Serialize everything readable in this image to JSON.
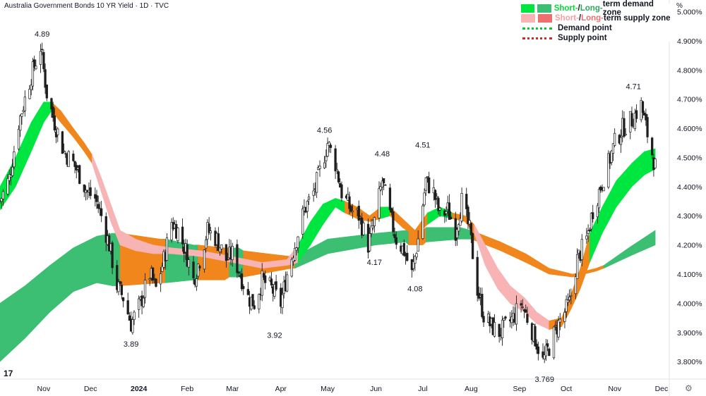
{
  "title": "Australia Government Bonds 10 YR Yield · 1D · TVC",
  "unit_label": "%",
  "legend": {
    "demand_short": "Short-",
    "demand_sep": " / ",
    "demand_long": "Long-",
    "demand_rest": "term demand zone",
    "supply_short": "Short-",
    "supply_sep": " / ",
    "supply_long": "Long-",
    "supply_rest": "term supply zone",
    "demand_point": "Demand point",
    "supply_point": "Supply point"
  },
  "colors": {
    "short_demand": "#00e640",
    "long_demand": "#3cbf72",
    "short_supply": "#f8b4b4",
    "long_supply": "#f0861c",
    "demand_point": "#00cc33",
    "supply_point": "#dd2222",
    "candle": "#1e1e1e"
  },
  "chart_data": {
    "type": "candlestick",
    "y_unit": "%",
    "ylim": [
      3.74,
      5.04
    ],
    "y_ticks": [
      "5.000%",
      "4.900%",
      "4.800%",
      "4.700%",
      "4.600%",
      "4.500%",
      "4.400%",
      "4.300%",
      "4.200%",
      "4.100%",
      "4.000%",
      "3.900%",
      "3.800%"
    ],
    "y_tick_values": [
      5.0,
      4.9,
      4.8,
      4.7,
      4.6,
      4.5,
      4.4,
      4.3,
      4.2,
      4.1,
      4.0,
      3.9,
      3.8
    ],
    "x_ticks": [
      "Nov",
      "Dec",
      "2024",
      "Feb",
      "Mar",
      "Apr",
      "May",
      "Jun",
      "Jul",
      "Aug",
      "Sep",
      "Oct",
      "Nov",
      "Dec"
    ],
    "x_tick_dates": [
      "2023-11-01",
      "2023-12-01",
      "2024-01-01",
      "2024-02-01",
      "2024-03-01",
      "2024-04-01",
      "2024-05-01",
      "2024-06-01",
      "2024-07-01",
      "2024-08-01",
      "2024-09-01",
      "2024-10-01",
      "2024-11-01",
      "2024-12-01"
    ],
    "x_range": [
      "2023-10-04",
      "2024-12-06"
    ],
    "last_close": 4.47,
    "close_path": [
      [
        "2023-10-04",
        4.35
      ],
      [
        "2023-10-10",
        4.43
      ],
      [
        "2023-10-16",
        4.62
      ],
      [
        "2023-10-20",
        4.7
      ],
      [
        "2023-10-24",
        4.78
      ],
      [
        "2023-10-30",
        4.88
      ],
      [
        "2023-11-03",
        4.72
      ],
      [
        "2023-11-08",
        4.62
      ],
      [
        "2023-11-14",
        4.52
      ],
      [
        "2023-11-20",
        4.48
      ],
      [
        "2023-11-24",
        4.44
      ],
      [
        "2023-11-29",
        4.38
      ],
      [
        "2023-12-04",
        4.36
      ],
      [
        "2023-12-08",
        4.3
      ],
      [
        "2023-12-13",
        4.2
      ],
      [
        "2023-12-18",
        4.06
      ],
      [
        "2023-12-22",
        4.02
      ],
      [
        "2023-12-27",
        3.93
      ],
      [
        "2024-01-02",
        4.0
      ],
      [
        "2024-01-08",
        4.1
      ],
      [
        "2024-01-12",
        4.05
      ],
      [
        "2024-01-17",
        4.15
      ],
      [
        "2024-01-22",
        4.28
      ],
      [
        "2024-01-26",
        4.25
      ],
      [
        "2024-01-31",
        4.18
      ],
      [
        "2024-02-05",
        4.08
      ],
      [
        "2024-02-09",
        4.15
      ],
      [
        "2024-02-14",
        4.25
      ],
      [
        "2024-02-20",
        4.22
      ],
      [
        "2024-02-26",
        4.15
      ],
      [
        "2024-03-01",
        4.17
      ],
      [
        "2024-03-06",
        4.1
      ],
      [
        "2024-03-11",
        4.02
      ],
      [
        "2024-03-15",
        4.0
      ],
      [
        "2024-03-20",
        4.08
      ],
      [
        "2024-03-26",
        4.05
      ],
      [
        "2024-04-01",
        4.0
      ],
      [
        "2024-04-05",
        4.1
      ],
      [
        "2024-04-10",
        4.2
      ],
      [
        "2024-04-16",
        4.32
      ],
      [
        "2024-04-22",
        4.38
      ],
      [
        "2024-04-26",
        4.45
      ],
      [
        "2024-05-01",
        4.55
      ],
      [
        "2024-05-06",
        4.48
      ],
      [
        "2024-05-10",
        4.38
      ],
      [
        "2024-05-16",
        4.32
      ],
      [
        "2024-05-21",
        4.3
      ],
      [
        "2024-05-27",
        4.2
      ],
      [
        "2024-05-31",
        4.28
      ],
      [
        "2024-06-05",
        4.42
      ],
      [
        "2024-06-10",
        4.3
      ],
      [
        "2024-06-14",
        4.22
      ],
      [
        "2024-06-19",
        4.18
      ],
      [
        "2024-06-24",
        4.1
      ],
      [
        "2024-06-28",
        4.22
      ],
      [
        "2024-07-03",
        4.42
      ],
      [
        "2024-07-08",
        4.38
      ],
      [
        "2024-07-12",
        4.3
      ],
      [
        "2024-07-17",
        4.32
      ],
      [
        "2024-07-22",
        4.25
      ],
      [
        "2024-07-26",
        4.35
      ],
      [
        "2024-07-31",
        4.25
      ],
      [
        "2024-08-05",
        4.05
      ],
      [
        "2024-08-09",
        3.96
      ],
      [
        "2024-08-14",
        3.92
      ],
      [
        "2024-08-19",
        3.9
      ],
      [
        "2024-08-23",
        3.92
      ],
      [
        "2024-08-28",
        3.95
      ],
      [
        "2024-09-02",
        4.0
      ],
      [
        "2024-09-06",
        3.95
      ],
      [
        "2024-09-11",
        3.88
      ],
      [
        "2024-09-16",
        3.8
      ],
      [
        "2024-09-20",
        3.85
      ],
      [
        "2024-09-25",
        3.92
      ],
      [
        "2024-09-30",
        3.97
      ],
      [
        "2024-10-03",
        4.0
      ],
      [
        "2024-10-08",
        4.15
      ],
      [
        "2024-10-14",
        4.22
      ],
      [
        "2024-10-18",
        4.32
      ],
      [
        "2024-10-23",
        4.4
      ],
      [
        "2024-10-28",
        4.48
      ],
      [
        "2024-11-01",
        4.55
      ],
      [
        "2024-11-06",
        4.6
      ],
      [
        "2024-11-12",
        4.63
      ],
      [
        "2024-11-18",
        4.68
      ],
      [
        "2024-11-22",
        4.58
      ],
      [
        "2024-11-27",
        4.47
      ]
    ],
    "annotations": [
      {
        "date": "2023-10-31",
        "value": 4.89,
        "label": "4.89",
        "position": "above"
      },
      {
        "date": "2023-12-27",
        "value": 3.89,
        "label": "3.89",
        "position": "below"
      },
      {
        "date": "2024-03-28",
        "value": 3.92,
        "label": "3.92",
        "position": "below"
      },
      {
        "date": "2024-04-29",
        "value": 4.56,
        "label": "4.56",
        "position": "above"
      },
      {
        "date": "2024-05-31",
        "value": 4.17,
        "label": "4.17",
        "position": "below"
      },
      {
        "date": "2024-06-05",
        "value": 4.48,
        "label": "4.48",
        "position": "above"
      },
      {
        "date": "2024-06-26",
        "value": 4.08,
        "label": "4.08",
        "position": "below"
      },
      {
        "date": "2024-07-01",
        "value": 4.51,
        "label": "4.51",
        "position": "above"
      },
      {
        "date": "2024-09-17",
        "value": 3.769,
        "label": "3.769",
        "position": "below"
      },
      {
        "date": "2024-11-13",
        "value": 4.71,
        "label": "4.71",
        "position": "above"
      }
    ],
    "short_term_band": [
      [
        "2023-10-04",
        4.32,
        4.4,
        "demand"
      ],
      [
        "2023-10-14",
        4.4,
        4.5,
        "demand"
      ],
      [
        "2023-10-24",
        4.52,
        4.62,
        "demand"
      ],
      [
        "2023-11-01",
        4.62,
        4.69,
        "demand"
      ],
      [
        "2023-11-06",
        4.66,
        4.69,
        "supply_long"
      ],
      [
        "2023-11-12",
        4.62,
        4.66,
        "supply_long"
      ],
      [
        "2023-11-20",
        4.57,
        4.6,
        "supply_long"
      ],
      [
        "2023-11-27",
        4.52,
        4.55,
        "supply_long"
      ],
      [
        "2023-12-02",
        4.48,
        4.51,
        "supply_short"
      ],
      [
        "2023-12-08",
        4.38,
        4.43,
        "supply_short"
      ],
      [
        "2023-12-14",
        4.28,
        4.34,
        "supply_short"
      ],
      [
        "2023-12-20",
        4.2,
        4.25,
        "supply_short"
      ],
      [
        "2023-12-30",
        4.18,
        4.22,
        "supply_short"
      ],
      [
        "2024-01-10",
        4.17,
        4.2,
        "supply_short"
      ],
      [
        "2024-01-22",
        4.17,
        4.19,
        "none"
      ],
      [
        "2024-02-10",
        4.16,
        4.18,
        "none"
      ],
      [
        "2024-03-01",
        4.14,
        4.16,
        "none"
      ],
      [
        "2024-03-20",
        4.12,
        4.14,
        "none"
      ],
      [
        "2024-04-05",
        4.13,
        4.15,
        "none"
      ],
      [
        "2024-04-12",
        4.14,
        4.2,
        "demand"
      ],
      [
        "2024-04-20",
        4.2,
        4.28,
        "demand"
      ],
      [
        "2024-04-28",
        4.27,
        4.34,
        "demand"
      ],
      [
        "2024-05-06",
        4.33,
        4.36,
        "demand"
      ],
      [
        "2024-05-12",
        4.31,
        4.35,
        "supply_long"
      ],
      [
        "2024-05-20",
        4.29,
        4.33,
        "supply_long"
      ],
      [
        "2024-05-28",
        4.28,
        4.3,
        "supply_long"
      ],
      [
        "2024-06-04",
        4.29,
        4.33,
        "demand"
      ],
      [
        "2024-06-10",
        4.3,
        4.33,
        "supply_long"
      ],
      [
        "2024-06-18",
        4.26,
        4.29,
        "supply_long"
      ],
      [
        "2024-06-26",
        4.23,
        4.25,
        "supply_long"
      ],
      [
        "2024-07-04",
        4.27,
        4.31,
        "demand"
      ],
      [
        "2024-07-12",
        4.3,
        4.33,
        "demand"
      ],
      [
        "2024-07-20",
        4.29,
        4.31,
        "supply_long"
      ],
      [
        "2024-07-28",
        4.28,
        4.3,
        "supply_long"
      ],
      [
        "2024-08-03",
        4.24,
        4.27,
        "supply_short"
      ],
      [
        "2024-08-10",
        4.13,
        4.2,
        "supply_short"
      ],
      [
        "2024-08-18",
        4.05,
        4.12,
        "supply_short"
      ],
      [
        "2024-08-26",
        4.0,
        4.06,
        "supply_short"
      ],
      [
        "2024-09-04",
        3.97,
        4.02,
        "supply_short"
      ],
      [
        "2024-09-12",
        3.93,
        3.97,
        "supply_short"
      ],
      [
        "2024-09-20",
        3.91,
        3.94,
        "supply_long"
      ],
      [
        "2024-09-28",
        3.92,
        3.95,
        "supply_long"
      ],
      [
        "2024-10-04",
        3.98,
        4.03,
        "demand_long"
      ],
      [
        "2024-10-10",
        4.05,
        4.12,
        "demand_long"
      ],
      [
        "2024-10-16",
        4.14,
        4.24,
        "demand"
      ],
      [
        "2024-10-24",
        4.24,
        4.33,
        "demand"
      ],
      [
        "2024-11-02",
        4.33,
        4.42,
        "demand"
      ],
      [
        "2024-11-12",
        4.4,
        4.48,
        "demand"
      ],
      [
        "2024-11-20",
        4.44,
        4.52,
        "demand"
      ],
      [
        "2024-11-27",
        4.46,
        4.53,
        "demand"
      ]
    ],
    "long_term_band": [
      [
        "2023-10-04",
        3.8,
        4.0,
        "demand"
      ],
      [
        "2023-10-20",
        3.88,
        4.06,
        "demand"
      ],
      [
        "2023-11-05",
        3.97,
        4.13,
        "demand"
      ],
      [
        "2023-11-20",
        4.04,
        4.19,
        "demand"
      ],
      [
        "2023-12-05",
        4.07,
        4.23,
        "demand"
      ],
      [
        "2023-12-15",
        4.06,
        4.24,
        "demand"
      ],
      [
        "2023-12-20",
        4.06,
        4.24,
        "supply_long"
      ],
      [
        "2024-01-15",
        4.07,
        4.22,
        "supply_long"
      ],
      [
        "2024-01-18",
        4.07,
        4.22,
        "demand"
      ],
      [
        "2024-02-05",
        4.08,
        4.2,
        "demand"
      ],
      [
        "2024-02-08",
        4.08,
        4.2,
        "supply_long"
      ],
      [
        "2024-02-25",
        4.08,
        4.19,
        "supply_long"
      ],
      [
        "2024-02-28",
        4.09,
        4.19,
        "demand"
      ],
      [
        "2024-03-05",
        4.09,
        4.19,
        "demand"
      ],
      [
        "2024-03-08",
        4.09,
        4.18,
        "supply_long"
      ],
      [
        "2024-04-08",
        4.12,
        4.16,
        "supply_long"
      ],
      [
        "2024-04-10",
        4.12,
        4.16,
        "demand"
      ],
      [
        "2024-05-01",
        4.17,
        4.22,
        "demand"
      ],
      [
        "2024-06-01",
        4.2,
        4.24,
        "demand"
      ],
      [
        "2024-06-20",
        4.21,
        4.25,
        "demand"
      ],
      [
        "2024-06-22",
        4.2,
        4.25,
        "supply_long"
      ],
      [
        "2024-07-01",
        4.2,
        4.25,
        "supply_long"
      ],
      [
        "2024-07-03",
        4.21,
        4.26,
        "demand"
      ],
      [
        "2024-07-25",
        4.22,
        4.26,
        "demand"
      ],
      [
        "2024-08-01",
        4.22,
        4.25,
        "supply_long"
      ],
      [
        "2024-08-20",
        4.18,
        4.21,
        "supply_long"
      ],
      [
        "2024-09-05",
        4.14,
        4.17,
        "supply_long"
      ],
      [
        "2024-09-20",
        4.1,
        4.12,
        "supply_long"
      ],
      [
        "2024-10-05",
        4.09,
        4.1,
        "supply_long"
      ],
      [
        "2024-10-20",
        4.11,
        4.12,
        "supply_long"
      ],
      [
        "2024-10-25",
        4.12,
        4.13,
        "demand"
      ],
      [
        "2024-11-10",
        4.16,
        4.19,
        "demand"
      ],
      [
        "2024-11-27",
        4.2,
        4.25,
        "demand"
      ]
    ]
  }
}
